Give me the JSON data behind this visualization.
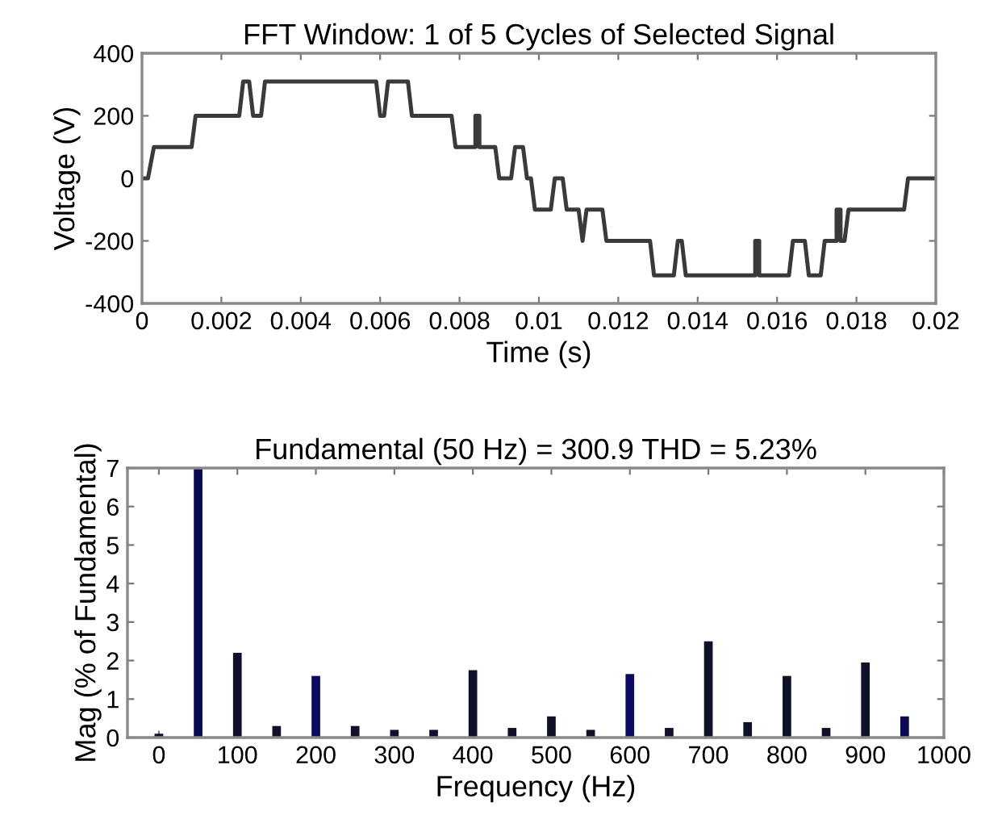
{
  "chart_data": [
    {
      "type": "line",
      "title": "FFT Window: 1 of 5 Cycles of Selected Signal",
      "xlabel": "Time (s)",
      "ylabel": "Voltage (V)",
      "xlim": [
        0,
        0.02
      ],
      "ylim": [
        -400,
        400
      ],
      "xticks": [
        0,
        0.002,
        0.004,
        0.006,
        0.008,
        0.01,
        0.012,
        0.014,
        0.016,
        0.018,
        0.02
      ],
      "yticks": [
        -400,
        -200,
        0,
        200,
        400
      ],
      "grid": false,
      "legend": false,
      "series": [
        {
          "color": "#3a3a3a",
          "x": [
            0,
            0.00015,
            0.0003,
            0.00125,
            0.00135,
            0.00245,
            0.00255,
            0.0027,
            0.0028,
            0.003,
            0.0031,
            0.0059,
            0.006,
            0.0061,
            0.0062,
            0.0067,
            0.0068,
            0.0078,
            0.0079,
            0.0084,
            0.0084,
            0.0085,
            0.0085,
            0.0089,
            0.009,
            0.0093,
            0.0094,
            0.0096,
            0.0097,
            0.0098,
            0.0099,
            0.0103,
            0.0104,
            0.0106,
            0.0107,
            0.011,
            0.0111,
            0.0111,
            0.0112,
            0.0116,
            0.0117,
            0.0128,
            0.0129,
            0.0134,
            0.0135,
            0.0136,
            0.0137,
            0.01545,
            0.01545,
            0.01555,
            0.01555,
            0.0163,
            0.0164,
            0.0167,
            0.0168,
            0.0171,
            0.0172,
            0.0175,
            0.0175,
            0.0176,
            0.0176,
            0.0177,
            0.0178,
            0.0192,
            0.0193,
            0.02
          ],
          "values": [
            0,
            0,
            100,
            100,
            200,
            200,
            310,
            310,
            200,
            200,
            310,
            310,
            200,
            200,
            310,
            310,
            200,
            200,
            100,
            100,
            200,
            200,
            100,
            100,
            0,
            0,
            100,
            100,
            0,
            0,
            -100,
            -100,
            0,
            0,
            -100,
            -100,
            -200,
            -200,
            -100,
            -100,
            -200,
            -200,
            -310,
            -310,
            -200,
            -200,
            -310,
            -310,
            -200,
            -200,
            -310,
            -310,
            -200,
            -200,
            -310,
            -310,
            -200,
            -200,
            -100,
            -100,
            -200,
            -200,
            -100,
            -100,
            0,
            0
          ]
        }
      ]
    },
    {
      "type": "bar",
      "title": "Fundamental (50 Hz) = 300.9 THD = 5.23%",
      "xlabel": "Frequency (Hz)",
      "ylabel": "Mag (% of Fundamental)",
      "xlim": [
        -40,
        1000
      ],
      "ylim": [
        0,
        7
      ],
      "xticks": [
        0,
        100,
        200,
        300,
        400,
        500,
        600,
        700,
        800,
        900,
        1000
      ],
      "yticks": [
        0,
        1,
        2,
        3,
        4,
        5,
        6,
        7
      ],
      "grid": false,
      "legend": false,
      "x": [
        0,
        50,
        100,
        150,
        200,
        250,
        300,
        350,
        400,
        450,
        500,
        550,
        600,
        650,
        700,
        750,
        800,
        850,
        900,
        950
      ],
      "values": [
        0.1,
        7,
        2.2,
        0.3,
        1.6,
        0.3,
        0.2,
        0.2,
        1.75,
        0.25,
        0.55,
        0.2,
        1.65,
        0.25,
        2.5,
        0.4,
        1.6,
        0.25,
        1.95,
        0.55
      ],
      "colors": [
        "#10102a",
        "#0a0a50",
        "#10102a",
        "#10102a",
        "#0a0a60",
        "#10102a",
        "#10102a",
        "#10102a",
        "#10102a",
        "#10102a",
        "#10102a",
        "#10102a",
        "#0a0a60",
        "#10102a",
        "#10102a",
        "#10102a",
        "#10102a",
        "#10102a",
        "#10102a",
        "#0a0a50"
      ]
    }
  ]
}
